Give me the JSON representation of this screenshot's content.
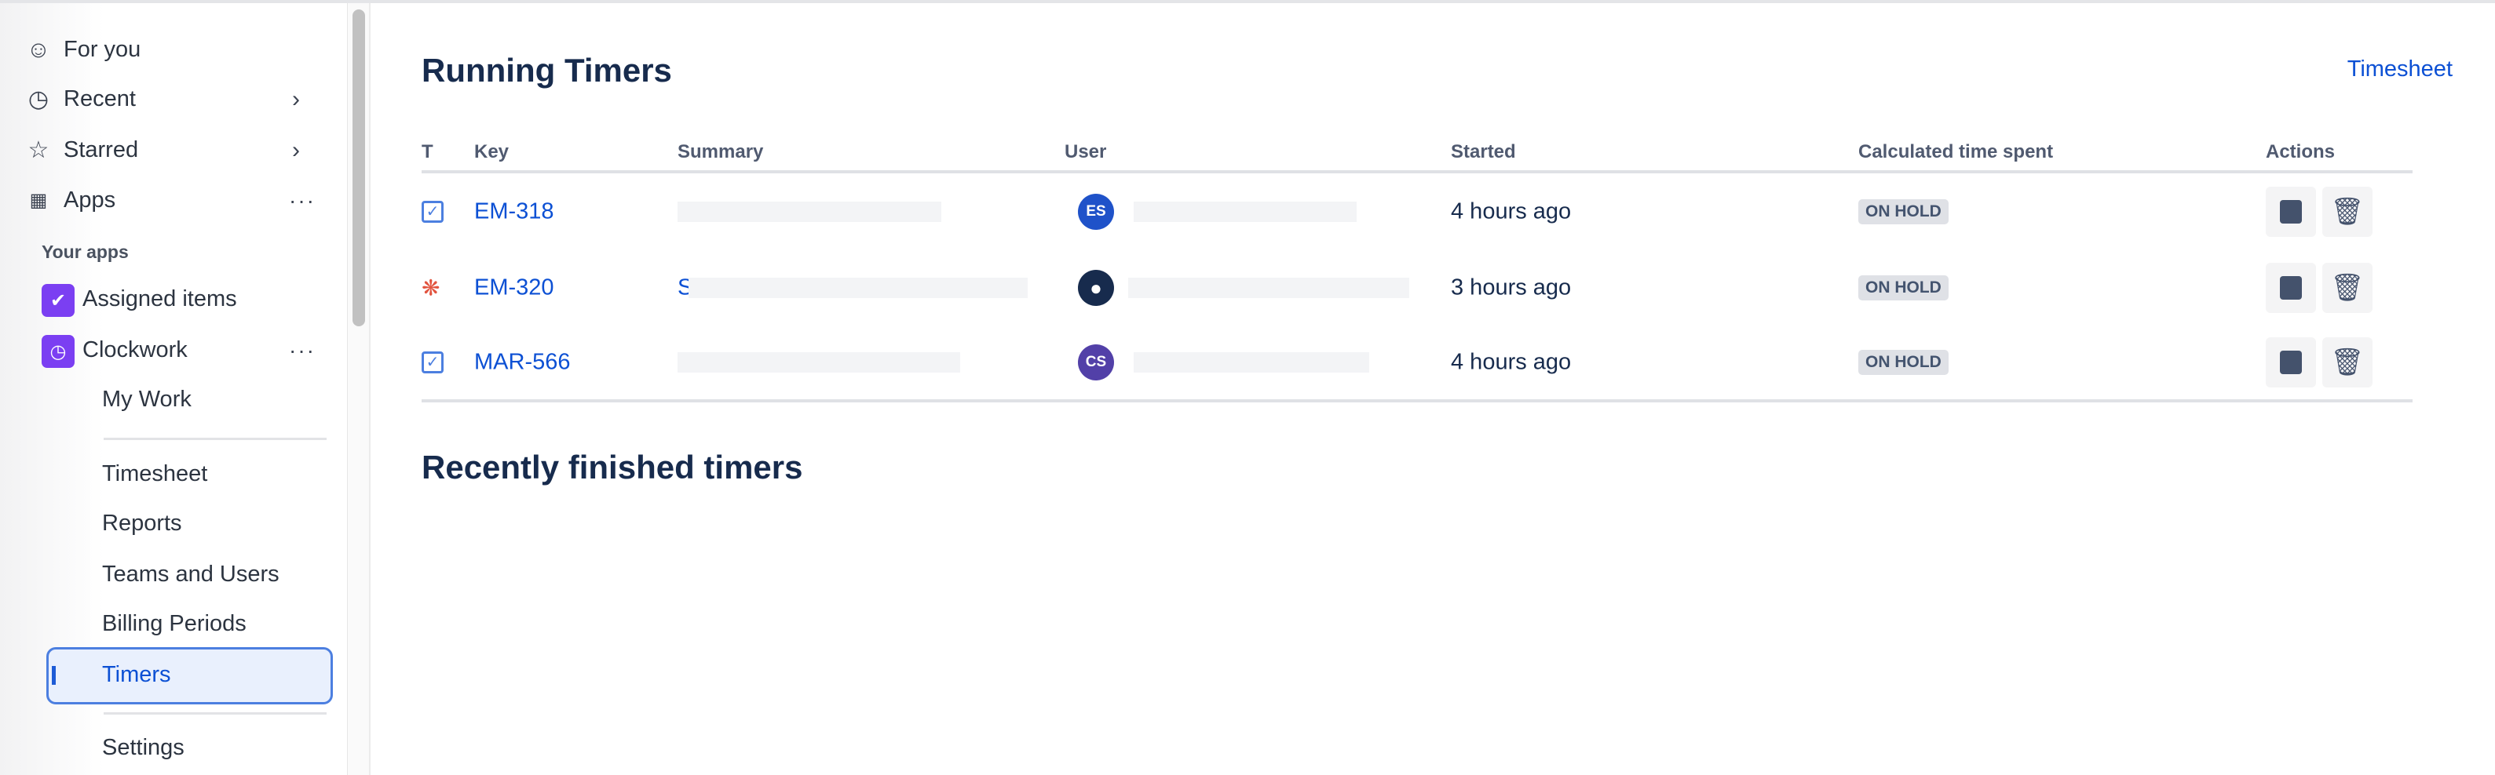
{
  "sidebar": {
    "items": [
      {
        "label": "For you",
        "icon": "person-circle-icon"
      },
      {
        "label": "Recent",
        "icon": "clock-icon"
      },
      {
        "label": "Starred",
        "icon": "star-icon"
      },
      {
        "label": "Apps",
        "icon": "apps-grid-icon"
      }
    ],
    "section_label": "Your apps",
    "apps": [
      {
        "label": "Assigned items"
      },
      {
        "label": "Clockwork"
      }
    ],
    "clockwork_items": [
      {
        "label": "My Work"
      },
      {
        "label": "Timesheet"
      },
      {
        "label": "Reports"
      },
      {
        "label": "Teams and Users"
      },
      {
        "label": "Billing Periods"
      },
      {
        "label": "Timers",
        "selected": true
      },
      {
        "label": "Settings"
      }
    ]
  },
  "main": {
    "title": "Running Timers",
    "timesheet_link": "Timesheet",
    "columns": [
      "T",
      "Key",
      "Summary",
      "User",
      "Started",
      "Calculated time spent",
      "Actions"
    ],
    "rows": [
      {
        "type": "task",
        "key": "EM-318",
        "summary": "",
        "avatar": "ES",
        "avatar_color": "#1f52c9",
        "started": "4 hours ago",
        "status": "ON HOLD"
      },
      {
        "type": "bug",
        "key": "EM-320",
        "summary": "S",
        "avatar": "",
        "avatar_color": "#172b4d",
        "started": "3 hours ago",
        "status": "ON HOLD"
      },
      {
        "type": "task",
        "key": "MAR-566",
        "summary": "",
        "avatar": "CS",
        "avatar_color": "#5240a8",
        "started": "4 hours ago",
        "status": "ON HOLD"
      }
    ],
    "recent_title": "Recently finished timers"
  },
  "colors": {
    "link": "#0c50d4",
    "selected_bg": "#e9f0fd",
    "app_icon": "#7b3ff2",
    "bug": "#e2543f"
  }
}
